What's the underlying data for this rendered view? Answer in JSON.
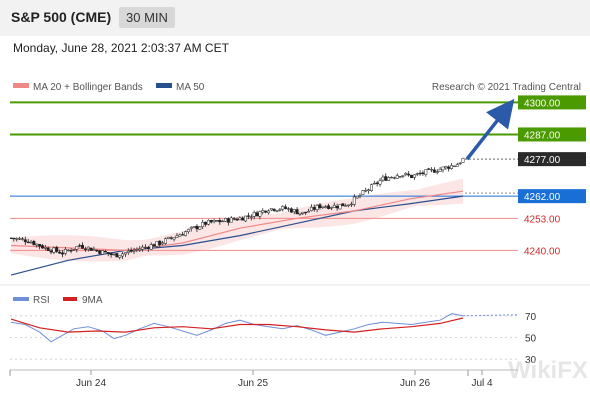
{
  "header": {
    "title": "S&P 500 (CME)",
    "timeframe": "30 MIN"
  },
  "timestamp": "Monday, June 28, 2021 2:03:37 AM CET",
  "copyright": "Research © 2021 Trading Central",
  "watermark": "WikiFX",
  "colors": {
    "green": "#4a9a00",
    "blue": "#1a6fd6",
    "red": "#cc2a2a",
    "dark": "#2a2a2a",
    "ma20": "#f08888",
    "ma50": "#2a4f8f",
    "band": "#fadede",
    "rsi": "#6f8fd8",
    "rsi_ma": "#d42020"
  },
  "chart_data": [
    {
      "type": "candlestick",
      "title": "",
      "legend": [
        "MA 20 + Bollinger Bands",
        "MA 50"
      ],
      "x_ticks": [
        "Jun 24",
        "Jun 25",
        "Jun 26",
        "Jul 4"
      ],
      "y_range": [
        4228,
        4303
      ],
      "levels": [
        {
          "value": 4300.0,
          "label": "4300.00",
          "style": "resistance"
        },
        {
          "value": 4287.0,
          "label": "4287.00",
          "style": "resistance"
        },
        {
          "value": 4277.0,
          "label": "4277.00",
          "style": "last"
        },
        {
          "value": 4262.0,
          "label": "4262.00",
          "style": "pivot"
        },
        {
          "value": 4253.0,
          "label": "4253.00",
          "style": "support"
        },
        {
          "value": 4240.0,
          "label": "4240.00",
          "style": "support"
        }
      ],
      "price_path": [
        [
          0,
          4245
        ],
        [
          6,
          4244
        ],
        [
          12,
          4241
        ],
        [
          18,
          4239
        ],
        [
          24,
          4242
        ],
        [
          30,
          4240
        ],
        [
          36,
          4238
        ],
        [
          40,
          4239
        ],
        [
          46,
          4241
        ],
        [
          52,
          4243
        ],
        [
          56,
          4245
        ],
        [
          62,
          4248
        ],
        [
          68,
          4251
        ],
        [
          74,
          4252
        ],
        [
          80,
          4253
        ],
        [
          86,
          4255
        ],
        [
          90,
          4257
        ],
        [
          96,
          4257
        ],
        [
          102,
          4255
        ],
        [
          108,
          4258
        ],
        [
          114,
          4258
        ],
        [
          118,
          4259
        ],
        [
          124,
          4264
        ],
        [
          130,
          4269
        ],
        [
          136,
          4271
        ],
        [
          140,
          4270
        ],
        [
          146,
          4272
        ],
        [
          150,
          4273
        ],
        [
          156,
          4275
        ],
        [
          158,
          4277
        ]
      ],
      "ma20": [
        [
          0,
          4242
        ],
        [
          20,
          4241
        ],
        [
          40,
          4240
        ],
        [
          60,
          4243
        ],
        [
          80,
          4249
        ],
        [
          100,
          4253
        ],
        [
          120,
          4256
        ],
        [
          140,
          4261
        ],
        [
          158,
          4264
        ]
      ],
      "ma50": [
        [
          0,
          4230
        ],
        [
          20,
          4236
        ],
        [
          40,
          4240
        ],
        [
          60,
          4242
        ],
        [
          80,
          4246
        ],
        [
          100,
          4251
        ],
        [
          120,
          4256
        ],
        [
          140,
          4259
        ],
        [
          158,
          4262
        ]
      ],
      "forecast": {
        "from": 4277,
        "to": 4300
      }
    },
    {
      "type": "line",
      "title": "",
      "legend": [
        "RSI",
        "9MA"
      ],
      "y_ticks": [
        70,
        50,
        30
      ],
      "y_range": [
        20,
        80
      ],
      "rsi": [
        [
          0,
          64
        ],
        [
          5,
          62
        ],
        [
          10,
          55
        ],
        [
          14,
          46
        ],
        [
          18,
          52
        ],
        [
          22,
          58
        ],
        [
          27,
          60
        ],
        [
          32,
          56
        ],
        [
          36,
          49
        ],
        [
          40,
          52
        ],
        [
          45,
          58
        ],
        [
          50,
          63
        ],
        [
          55,
          60
        ],
        [
          60,
          56
        ],
        [
          65,
          52
        ],
        [
          70,
          57
        ],
        [
          75,
          63
        ],
        [
          80,
          66
        ],
        [
          85,
          62
        ],
        [
          90,
          60
        ],
        [
          95,
          58
        ],
        [
          100,
          61
        ],
        [
          105,
          57
        ],
        [
          110,
          52
        ],
        [
          115,
          55
        ],
        [
          120,
          58
        ],
        [
          125,
          62
        ],
        [
          130,
          64
        ],
        [
          135,
          63
        ],
        [
          140,
          62
        ],
        [
          145,
          64
        ],
        [
          150,
          66
        ],
        [
          154,
          72
        ],
        [
          158,
          70
        ]
      ],
      "rsi_ma": [
        [
          0,
          67
        ],
        [
          10,
          59
        ],
        [
          20,
          55
        ],
        [
          30,
          56
        ],
        [
          40,
          55
        ],
        [
          50,
          59
        ],
        [
          60,
          60
        ],
        [
          70,
          58
        ],
        [
          80,
          62
        ],
        [
          90,
          62
        ],
        [
          100,
          60
        ],
        [
          110,
          57
        ],
        [
          120,
          55
        ],
        [
          130,
          58
        ],
        [
          140,
          60
        ],
        [
          150,
          63
        ],
        [
          158,
          68
        ]
      ],
      "rsi_projection": 71
    }
  ]
}
